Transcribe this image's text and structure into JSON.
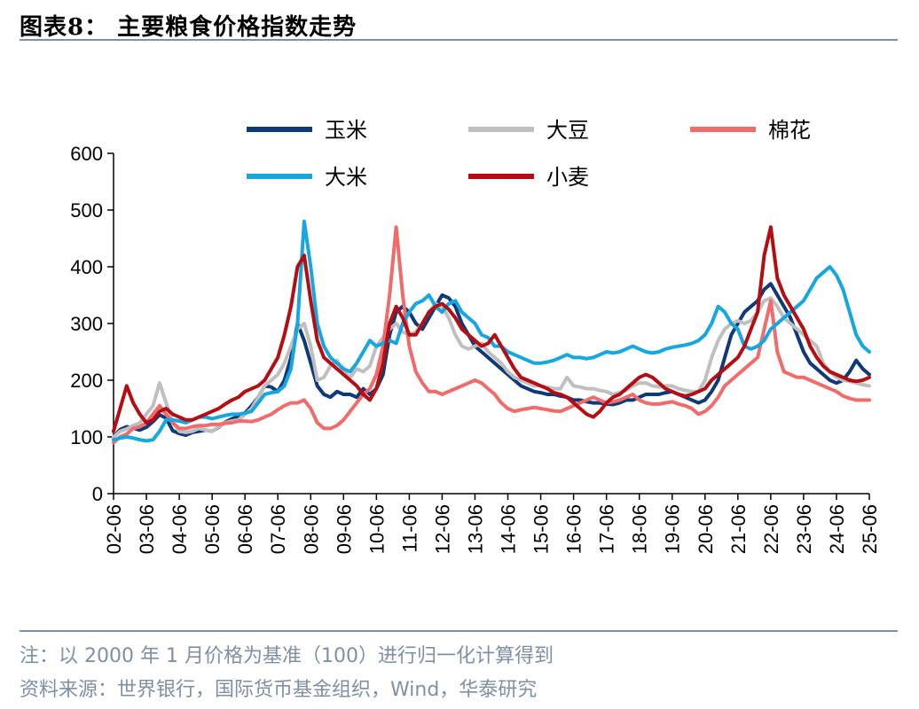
{
  "figure": {
    "title": "图表8：  主要粮食价格指数走势",
    "note": "注：以 2000 年 1 月价格为基准（100）进行归一化计算得到",
    "source": "资料来源：世界银行，国际货币基金组织，Wind，华泰研究"
  },
  "chart_data": {
    "type": "line",
    "ylim": [
      0,
      600
    ],
    "yticks": [
      0,
      100,
      200,
      300,
      400,
      500,
      600
    ],
    "xticks": [
      "02-06",
      "03-06",
      "04-06",
      "05-06",
      "06-06",
      "07-06",
      "08-06",
      "09-06",
      "10-06",
      "11-06",
      "12-06",
      "13-06",
      "14-06",
      "15-06",
      "16-06",
      "17-06",
      "18-06",
      "19-06",
      "20-06",
      "21-06",
      "22-06",
      "23-06",
      "24-06",
      "25-06"
    ],
    "x": [
      2002.4,
      2002.6,
      2002.8,
      2003.0,
      2003.2,
      2003.4,
      2003.6,
      2003.8,
      2004.0,
      2004.2,
      2004.4,
      2004.6,
      2004.8,
      2005.0,
      2005.2,
      2005.4,
      2005.6,
      2005.8,
      2006.0,
      2006.2,
      2006.4,
      2006.6,
      2006.8,
      2007.0,
      2007.2,
      2007.4,
      2007.6,
      2007.8,
      2008.0,
      2008.2,
      2008.4,
      2008.6,
      2008.8,
      2009.0,
      2009.2,
      2009.4,
      2009.6,
      2009.8,
      2010.0,
      2010.2,
      2010.4,
      2010.6,
      2010.8,
      2011.0,
      2011.2,
      2011.4,
      2011.6,
      2011.8,
      2012.0,
      2012.2,
      2012.4,
      2012.6,
      2012.8,
      2013.0,
      2013.2,
      2013.4,
      2013.6,
      2013.8,
      2014.0,
      2014.2,
      2014.4,
      2014.6,
      2014.8,
      2015.0,
      2015.2,
      2015.4,
      2015.6,
      2015.8,
      2016.0,
      2016.2,
      2016.4,
      2016.6,
      2016.8,
      2017.0,
      2017.2,
      2017.4,
      2017.6,
      2017.8,
      2018.0,
      2018.2,
      2018.4,
      2018.6,
      2018.8,
      2019.0,
      2019.2,
      2019.4,
      2019.6,
      2019.8,
      2020.0,
      2020.2,
      2020.4,
      2020.6,
      2020.8,
      2021.0,
      2021.2,
      2021.4,
      2021.6,
      2021.8,
      2022.0,
      2022.2,
      2022.4,
      2022.6,
      2022.8,
      2023.0,
      2023.2,
      2023.4,
      2023.6,
      2023.8,
      2024.0,
      2024.2,
      2024.4,
      2024.6,
      2024.8,
      2025.0,
      2025.2,
      2025.4
    ],
    "legend": [
      {
        "name": "玉米",
        "color": "#0e3a78"
      },
      {
        "name": "大豆",
        "color": "#bfbfbf"
      },
      {
        "name": "棉花",
        "color": "#f26b6b"
      },
      {
        "name": "大米",
        "color": "#16a6e0"
      },
      {
        "name": "小麦",
        "color": "#b50d12"
      }
    ],
    "series": [
      {
        "name": "玉米",
        "color": "#0e3a78",
        "values": [
          100,
          113,
          118,
          116,
          112,
          117,
          127,
          139,
          133,
          111,
          106,
          103,
          108,
          110,
          112,
          110,
          117,
          126,
          132,
          136,
          142,
          155,
          170,
          190,
          188,
          180,
          200,
          240,
          300,
          270,
          230,
          190,
          175,
          170,
          180,
          175,
          175,
          170,
          185,
          175,
          185,
          210,
          280,
          320,
          330,
          320,
          300,
          290,
          310,
          330,
          350,
          345,
          330,
          300,
          280,
          260,
          250,
          240,
          230,
          220,
          210,
          200,
          190,
          185,
          180,
          178,
          175,
          175,
          172,
          170,
          165,
          165,
          162,
          160,
          160,
          158,
          157,
          160,
          165,
          165,
          170,
          175,
          175,
          175,
          178,
          180,
          175,
          170,
          165,
          160,
          165,
          180,
          200,
          240,
          280,
          300,
          320,
          330,
          340,
          360,
          370,
          350,
          330,
          310,
          280,
          250,
          230,
          220,
          210,
          200,
          195,
          200,
          215,
          235,
          220,
          210
        ]
      },
      {
        "name": "大豆",
        "color": "#bfbfbf",
        "values": [
          100,
          110,
          114,
          120,
          125,
          140,
          155,
          195,
          160,
          125,
          110,
          108,
          110,
          115,
          112,
          110,
          118,
          125,
          128,
          130,
          140,
          150,
          170,
          190,
          200,
          210,
          230,
          260,
          290,
          300,
          260,
          200,
          205,
          225,
          235,
          215,
          205,
          220,
          215,
          225,
          260,
          275,
          290,
          300,
          285,
          280,
          285,
          300,
          320,
          335,
          330,
          310,
          280,
          260,
          255,
          260,
          265,
          250,
          240,
          230,
          215,
          205,
          200,
          195,
          190,
          190,
          188,
          185,
          185,
          205,
          190,
          188,
          185,
          185,
          182,
          180,
          175,
          178,
          182,
          190,
          195,
          195,
          190,
          188,
          190,
          190,
          185,
          182,
          180,
          180,
          200,
          240,
          270,
          290,
          300,
          305,
          300,
          305,
          320,
          340,
          345,
          330,
          310,
          300,
          290,
          280,
          270,
          260,
          230,
          215,
          205,
          200,
          198,
          195,
          192,
          190
        ]
      },
      {
        "name": "棉花",
        "color": "#f26b6b",
        "values": [
          90,
          100,
          105,
          115,
          118,
          125,
          140,
          155,
          140,
          125,
          115,
          115,
          118,
          120,
          120,
          122,
          122,
          124,
          125,
          128,
          128,
          127,
          130,
          135,
          140,
          148,
          155,
          160,
          160,
          165,
          150,
          125,
          115,
          115,
          120,
          130,
          145,
          160,
          175,
          185,
          210,
          260,
          350,
          470,
          350,
          260,
          215,
          195,
          180,
          180,
          175,
          180,
          185,
          190,
          195,
          200,
          195,
          185,
          175,
          160,
          150,
          145,
          148,
          150,
          152,
          150,
          148,
          146,
          145,
          150,
          155,
          160,
          165,
          170,
          165,
          160,
          162,
          165,
          170,
          175,
          165,
          160,
          158,
          158,
          160,
          162,
          158,
          155,
          150,
          140,
          145,
          155,
          170,
          190,
          200,
          210,
          220,
          230,
          240,
          290,
          340,
          250,
          215,
          210,
          205,
          205,
          200,
          195,
          190,
          185,
          180,
          172,
          168,
          165,
          165,
          165
        ]
      },
      {
        "name": "大米",
        "color": "#16a6e0",
        "values": [
          95,
          98,
          100,
          98,
          95,
          93,
          95,
          110,
          130,
          130,
          128,
          125,
          130,
          135,
          135,
          132,
          135,
          138,
          140,
          140,
          142,
          145,
          160,
          175,
          178,
          180,
          190,
          220,
          300,
          480,
          400,
          300,
          260,
          240,
          230,
          220,
          215,
          230,
          250,
          270,
          260,
          265,
          270,
          265,
          300,
          320,
          335,
          340,
          350,
          330,
          320,
          335,
          340,
          320,
          310,
          300,
          280,
          275,
          260,
          260,
          250,
          245,
          240,
          235,
          230,
          230,
          232,
          235,
          240,
          245,
          240,
          240,
          238,
          240,
          245,
          250,
          248,
          250,
          255,
          260,
          255,
          250,
          248,
          250,
          255,
          258,
          260,
          262,
          265,
          270,
          280,
          300,
          330,
          320,
          300,
          290,
          260,
          255,
          260,
          270,
          290,
          300,
          310,
          320,
          330,
          340,
          360,
          380,
          390,
          400,
          385,
          360,
          320,
          280,
          260,
          250
        ]
      },
      {
        "name": "小麦",
        "color": "#b50d12",
        "values": [
          110,
          150,
          190,
          160,
          140,
          125,
          130,
          145,
          150,
          140,
          135,
          130,
          130,
          135,
          140,
          145,
          150,
          158,
          165,
          170,
          180,
          185,
          190,
          200,
          220,
          240,
          280,
          330,
          400,
          420,
          340,
          270,
          240,
          230,
          220,
          210,
          200,
          190,
          175,
          165,
          185,
          230,
          300,
          330,
          310,
          280,
          280,
          300,
          320,
          330,
          335,
          325,
          310,
          290,
          280,
          270,
          260,
          265,
          280,
          260,
          240,
          220,
          205,
          200,
          195,
          190,
          185,
          178,
          175,
          170,
          160,
          150,
          140,
          135,
          145,
          160,
          170,
          175,
          185,
          195,
          205,
          210,
          205,
          195,
          185,
          180,
          175,
          172,
          175,
          180,
          185,
          200,
          210,
          220,
          230,
          240,
          260,
          290,
          320,
          420,
          470,
          380,
          350,
          330,
          310,
          290,
          260,
          240,
          225,
          215,
          210,
          205,
          200,
          198,
          200,
          205
        ]
      }
    ]
  }
}
